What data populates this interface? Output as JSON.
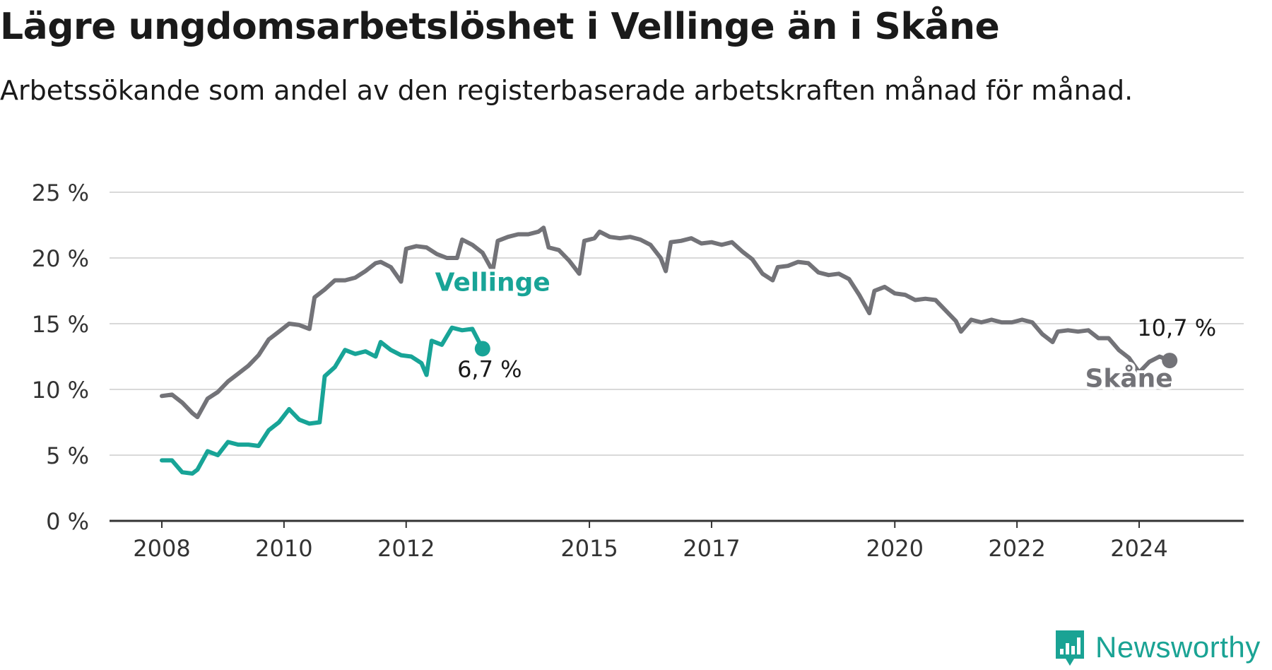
{
  "header": {
    "title": "Lägre ungdomsarbetslöshet i Vellinge än i Skåne",
    "subtitle": "Arbetssökande som andel av den registerbaserade arbetskraften månad för månad."
  },
  "brand": {
    "name": "Newsworthy",
    "icon": "bar-chart-speech-bubble-icon",
    "color": "#1aa394"
  },
  "colors": {
    "skane": "#737378",
    "vellinge": "#18a497",
    "grid": "#d9d9d9",
    "axis": "#333333"
  },
  "chart_data": {
    "type": "line",
    "title": "Lägre ungdomsarbetslöshet i Vellinge än i Skåne",
    "ylim": [
      0,
      25
    ],
    "yticks": [
      0,
      5,
      10,
      15,
      20,
      25
    ],
    "ytick_labels": [
      "0 %",
      "5 %",
      "10 %",
      "15 %",
      "20 %",
      "25 %"
    ],
    "xlim": [
      "2008-01",
      "2025-09"
    ],
    "xticks": [
      "2008-01",
      "2010-01",
      "2012-01",
      "2015-01",
      "2017-01",
      "2020-01",
      "2022-01",
      "2024-01"
    ],
    "xtick_labels": [
      "2008",
      "2010",
      "2012",
      "2015",
      "2017",
      "2020",
      "2022",
      "2024"
    ],
    "grid": true,
    "series": [
      {
        "name": "Skåne",
        "color": "#737378",
        "last_label": "10,7 %",
        "points": [
          [
            "2008-01",
            9.5
          ],
          [
            "2008-03",
            9.6
          ],
          [
            "2008-05",
            9.0
          ],
          [
            "2008-07",
            8.2
          ],
          [
            "2008-08",
            7.9
          ],
          [
            "2008-10",
            9.3
          ],
          [
            "2008-12",
            9.8
          ],
          [
            "2009-02",
            10.6
          ],
          [
            "2009-04",
            11.2
          ],
          [
            "2009-06",
            11.8
          ],
          [
            "2009-08",
            12.6
          ],
          [
            "2009-10",
            13.8
          ],
          [
            "2009-12",
            14.4
          ],
          [
            "2010-02",
            15.0
          ],
          [
            "2010-04",
            14.9
          ],
          [
            "2010-06",
            14.6
          ],
          [
            "2010-07",
            17.0
          ],
          [
            "2010-09",
            17.6
          ],
          [
            "2010-11",
            18.3
          ],
          [
            "2011-01",
            18.3
          ],
          [
            "2011-03",
            18.5
          ],
          [
            "2011-05",
            19.0
          ],
          [
            "2011-07",
            19.6
          ],
          [
            "2011-08",
            19.7
          ],
          [
            "2011-10",
            19.3
          ],
          [
            "2011-12",
            18.2
          ],
          [
            "2012-01",
            20.7
          ],
          [
            "2012-03",
            20.9
          ],
          [
            "2012-05",
            20.8
          ],
          [
            "2012-07",
            20.3
          ],
          [
            "2012-09",
            20.0
          ],
          [
            "2012-11",
            20.0
          ],
          [
            "2012-12",
            21.4
          ],
          [
            "2013-02",
            21.0
          ],
          [
            "2013-04",
            20.4
          ],
          [
            "2013-06",
            19.0
          ],
          [
            "2013-07",
            21.3
          ],
          [
            "2013-09",
            21.6
          ],
          [
            "2013-11",
            21.8
          ],
          [
            "2014-01",
            21.8
          ],
          [
            "2014-03",
            22.0
          ],
          [
            "2014-04",
            22.3
          ],
          [
            "2014-05",
            20.8
          ],
          [
            "2014-07",
            20.6
          ],
          [
            "2014-09",
            19.8
          ],
          [
            "2014-11",
            18.8
          ],
          [
            "2014-12",
            21.3
          ],
          [
            "2015-02",
            21.5
          ],
          [
            "2015-03",
            22.0
          ],
          [
            "2015-05",
            21.6
          ],
          [
            "2015-07",
            21.5
          ],
          [
            "2015-09",
            21.6
          ],
          [
            "2015-11",
            21.4
          ],
          [
            "2016-01",
            21.0
          ],
          [
            "2016-03",
            20.0
          ],
          [
            "2016-04",
            19.0
          ],
          [
            "2016-05",
            21.2
          ],
          [
            "2016-07",
            21.3
          ],
          [
            "2016-09",
            21.5
          ],
          [
            "2016-11",
            21.1
          ],
          [
            "2017-01",
            21.2
          ],
          [
            "2017-03",
            21.0
          ],
          [
            "2017-05",
            21.2
          ],
          [
            "2017-07",
            20.5
          ],
          [
            "2017-09",
            19.9
          ],
          [
            "2017-11",
            18.8
          ],
          [
            "2018-01",
            18.3
          ],
          [
            "2018-02",
            19.3
          ],
          [
            "2018-04",
            19.4
          ],
          [
            "2018-06",
            19.7
          ],
          [
            "2018-08",
            19.6
          ],
          [
            "2018-10",
            18.9
          ],
          [
            "2018-12",
            18.7
          ],
          [
            "2019-02",
            18.8
          ],
          [
            "2019-04",
            18.4
          ],
          [
            "2019-06",
            17.2
          ],
          [
            "2019-08",
            15.8
          ],
          [
            "2019-09",
            17.5
          ],
          [
            "2019-11",
            17.8
          ],
          [
            "2020-01",
            17.3
          ],
          [
            "2020-03",
            17.2
          ],
          [
            "2020-05",
            16.8
          ],
          [
            "2020-07",
            16.9
          ],
          [
            "2020-09",
            16.8
          ],
          [
            "2020-11",
            16.0
          ],
          [
            "2021-01",
            15.2
          ],
          [
            "2021-02",
            14.4
          ],
          [
            "2021-04",
            15.3
          ],
          [
            "2021-06",
            15.1
          ],
          [
            "2021-08",
            15.3
          ],
          [
            "2021-10",
            15.1
          ],
          [
            "2021-12",
            15.1
          ],
          [
            "2022-02",
            15.3
          ],
          [
            "2022-04",
            15.1
          ],
          [
            "2022-06",
            14.2
          ],
          [
            "2022-08",
            13.6
          ],
          [
            "2022-09",
            14.4
          ],
          [
            "2022-11",
            14.5
          ],
          [
            "2023-01",
            14.4
          ],
          [
            "2023-03",
            14.5
          ],
          [
            "2023-05",
            13.9
          ],
          [
            "2023-07",
            13.9
          ],
          [
            "2023-09",
            13.0
          ],
          [
            "2023-11",
            12.4
          ],
          [
            "2024-01",
            11.3
          ],
          [
            "2024-03",
            12.1
          ],
          [
            "2024-05",
            12.5
          ],
          [
            "2024-07",
            12.2
          ]
        ]
      },
      {
        "name": "Vellinge",
        "color": "#18a497",
        "last_label": "6,7 %",
        "points": [
          [
            "2008-01",
            4.6
          ],
          [
            "2008-03",
            4.6
          ],
          [
            "2008-05",
            3.7
          ],
          [
            "2008-07",
            3.6
          ],
          [
            "2008-08",
            3.9
          ],
          [
            "2008-10",
            5.3
          ],
          [
            "2008-12",
            5.0
          ],
          [
            "2009-02",
            6.0
          ],
          [
            "2009-04",
            5.8
          ],
          [
            "2009-06",
            5.8
          ],
          [
            "2009-08",
            5.7
          ],
          [
            "2009-10",
            6.9
          ],
          [
            "2009-12",
            7.5
          ],
          [
            "2010-02",
            8.5
          ],
          [
            "2010-04",
            7.7
          ],
          [
            "2010-06",
            7.4
          ],
          [
            "2010-08",
            7.5
          ],
          [
            "2010-09",
            11.0
          ],
          [
            "2010-11",
            11.7
          ],
          [
            "2011-01",
            13.0
          ],
          [
            "2011-03",
            12.7
          ],
          [
            "2011-05",
            12.9
          ],
          [
            "2011-07",
            12.5
          ],
          [
            "2011-08",
            13.6
          ],
          [
            "2011-10",
            13.0
          ],
          [
            "2011-12",
            12.6
          ],
          [
            "2012-02",
            12.5
          ],
          [
            "2012-04",
            12.0
          ],
          [
            "2012-05",
            11.1
          ],
          [
            "2012-06",
            13.7
          ],
          [
            "2012-08",
            13.4
          ],
          [
            "2012-10",
            14.7
          ],
          [
            "2012-12",
            14.5
          ],
          [
            "2013-02",
            14.6
          ],
          [
            "2013-04",
            13.1
          ]
        ]
      }
    ],
    "annotations": [
      {
        "text": "Vellinge",
        "series": "Vellinge"
      },
      {
        "text": "Skåne",
        "series": "Skåne"
      }
    ]
  }
}
